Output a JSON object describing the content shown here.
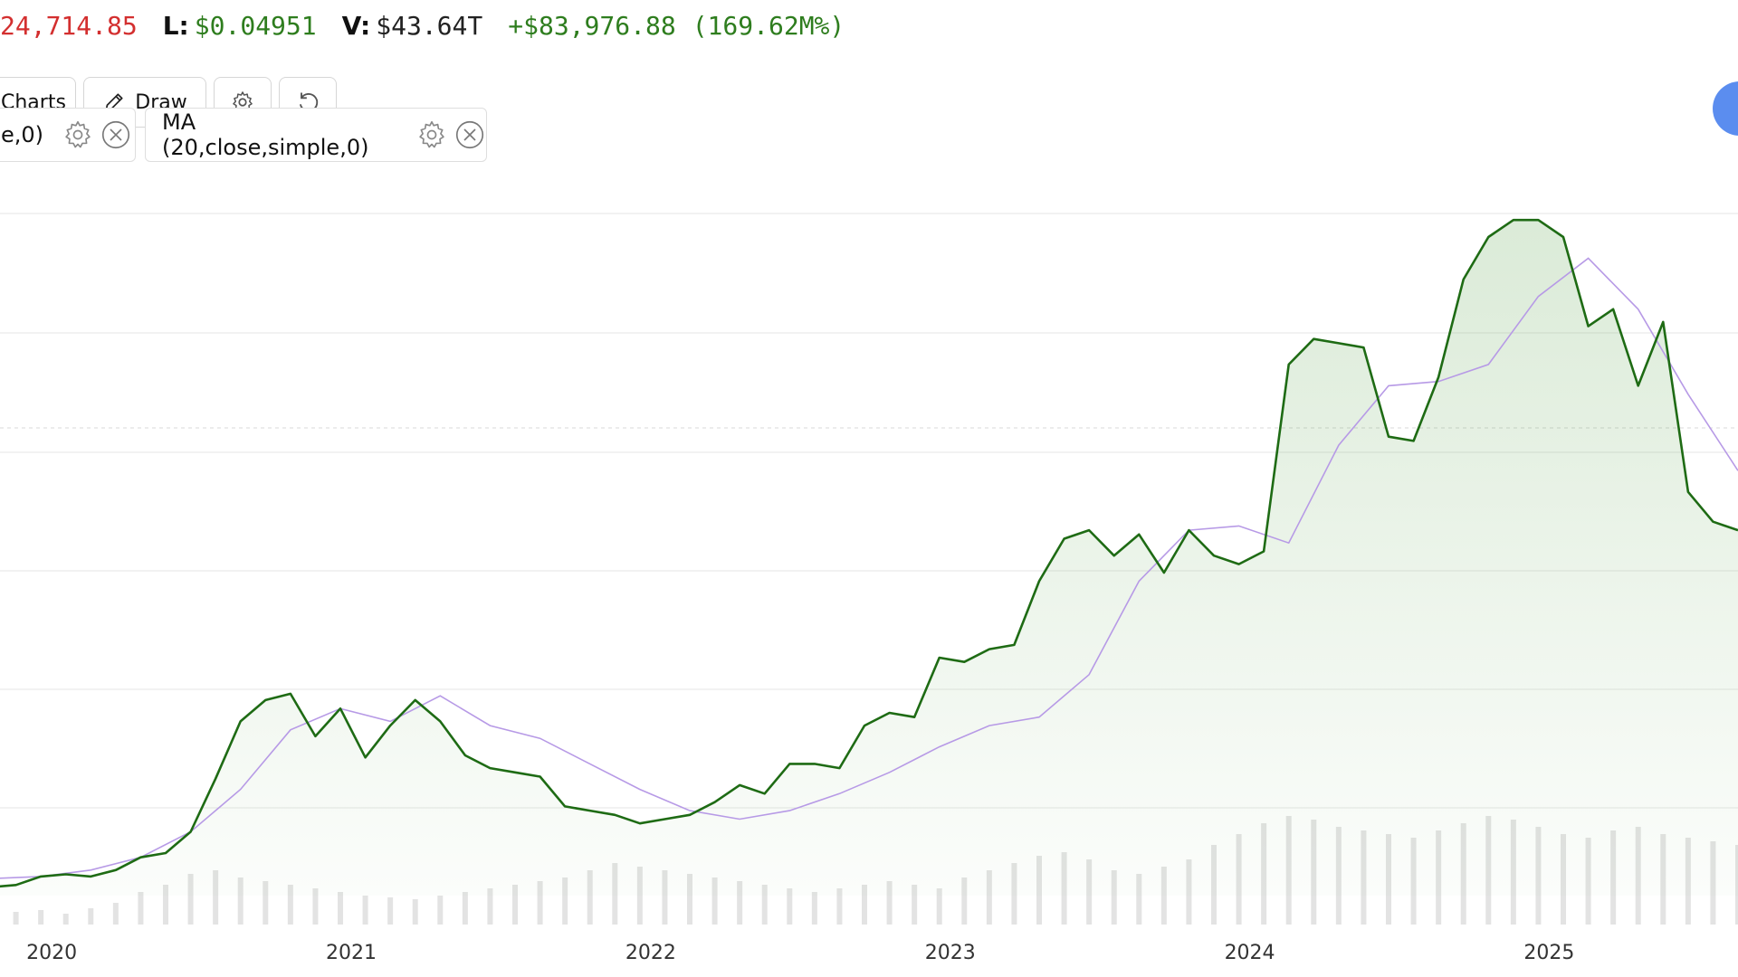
{
  "header": {
    "high_value": "24,714.85",
    "low_label": "L:",
    "low_value": "$0.04951",
    "volume_label": "V:",
    "volume_value": "$43.64T",
    "change_value": "+$83,976.88",
    "change_pct": "(169.62M%)"
  },
  "toolbar": {
    "charts_label": "Charts",
    "draw_label": "Draw"
  },
  "indicators": [
    {
      "label": "e,0)"
    },
    {
      "label": "MA (20,close,simple,0)"
    }
  ],
  "colors": {
    "up": "#2e7d1e",
    "down": "#d32f2f",
    "price_line": "#1e6b14",
    "ma_line": "#b79ae6",
    "volume_bar": "#e3e3e3",
    "grid": "#e6e6e6",
    "accent": "#5b8def"
  },
  "chart_data": {
    "type": "line",
    "x_tick_labels": [
      "2020",
      "2021",
      "2022",
      "2023",
      "2024",
      "2025"
    ],
    "x_range": [
      "2019-11",
      "2025-09"
    ],
    "series": [
      {
        "kind": "price",
        "x": [
          "2019-11",
          "2019-12",
          "2020-01",
          "2020-02",
          "2020-03",
          "2020-04",
          "2020-05",
          "2020-06",
          "2020-07",
          "2020-08",
          "2020-09",
          "2020-10",
          "2020-11",
          "2020-12",
          "2021-01",
          "2021-02",
          "2021-03",
          "2021-04",
          "2021-05",
          "2021-06",
          "2021-07",
          "2021-08",
          "2021-09",
          "2021-10",
          "2021-11",
          "2021-12",
          "2022-01",
          "2022-02",
          "2022-03",
          "2022-04",
          "2022-05",
          "2022-06",
          "2022-07",
          "2022-08",
          "2022-09",
          "2022-10",
          "2022-11",
          "2022-12",
          "2023-01",
          "2023-02",
          "2023-03",
          "2023-04",
          "2023-05",
          "2023-06",
          "2023-07",
          "2023-08",
          "2023-09",
          "2023-10",
          "2023-11",
          "2023-12",
          "2024-01",
          "2024-02",
          "2024-03",
          "2024-04",
          "2024-05",
          "2024-06",
          "2024-07",
          "2024-08",
          "2024-09",
          "2024-10",
          "2024-11",
          "2024-12",
          "2025-01",
          "2025-02",
          "2025-03",
          "2025-04",
          "2025-05",
          "2025-06",
          "2025-07",
          "2025-08",
          "2025-09"
        ],
        "values": [
          4,
          5,
          9,
          10,
          9,
          12,
          18,
          20,
          30,
          55,
          82,
          92,
          95,
          75,
          88,
          65,
          80,
          92,
          82,
          66,
          60,
          58,
          56,
          42,
          40,
          38,
          34,
          36,
          38,
          44,
          52,
          48,
          62,
          62,
          60,
          80,
          86,
          84,
          112,
          110,
          116,
          118,
          148,
          168,
          172,
          160,
          170,
          152,
          172,
          160,
          156,
          162,
          250,
          262,
          260,
          258,
          216,
          214,
          244,
          290,
          310,
          318,
          318,
          310,
          268,
          276,
          240,
          270,
          190,
          176,
          172
        ]
      },
      {
        "kind": "ma",
        "name": "MA (20,close,simple,0)",
        "x": [
          "2019-11",
          "2020-01",
          "2020-03",
          "2020-05",
          "2020-07",
          "2020-09",
          "2020-11",
          "2021-01",
          "2021-03",
          "2021-05",
          "2021-07",
          "2021-09",
          "2021-11",
          "2022-01",
          "2022-03",
          "2022-05",
          "2022-07",
          "2022-09",
          "2022-11",
          "2023-01",
          "2023-03",
          "2023-05",
          "2023-07",
          "2023-09",
          "2023-11",
          "2024-01",
          "2024-03",
          "2024-05",
          "2024-07",
          "2024-09",
          "2024-11",
          "2025-01",
          "2025-03",
          "2025-05",
          "2025-07",
          "2025-09"
        ],
        "values": [
          8,
          9,
          12,
          18,
          30,
          50,
          78,
          88,
          82,
          94,
          80,
          74,
          62,
          50,
          40,
          36,
          40,
          48,
          58,
          70,
          80,
          84,
          104,
          148,
          172,
          174,
          166,
          212,
          240,
          242,
          250,
          282,
          300,
          276,
          236,
          200
        ]
      }
    ],
    "volume": [
      6,
      7,
      8,
      6,
      9,
      12,
      18,
      22,
      28,
      30,
      26,
      24,
      22,
      20,
      18,
      16,
      15,
      14,
      16,
      18,
      20,
      22,
      24,
      26,
      30,
      34,
      32,
      30,
      28,
      26,
      24,
      22,
      20,
      18,
      20,
      22,
      24,
      22,
      20,
      26,
      30,
      34,
      38,
      40,
      36,
      30,
      28,
      32,
      36,
      44,
      50,
      56,
      60,
      58,
      54,
      52,
      50,
      48,
      52,
      56,
      60,
      58,
      54,
      50,
      48,
      52,
      54,
      50,
      48,
      46,
      44
    ]
  }
}
